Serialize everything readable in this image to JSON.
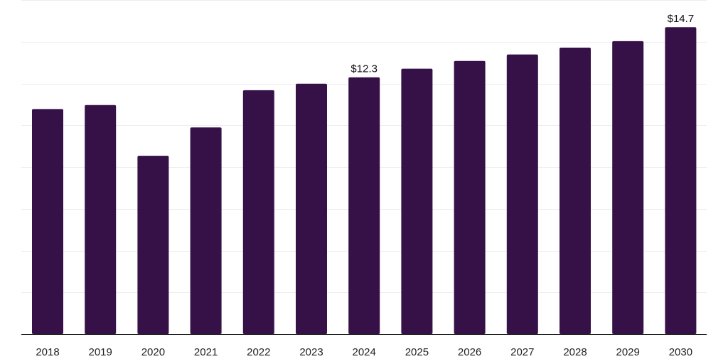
{
  "chart_data": {
    "type": "bar",
    "title": "",
    "xlabel": "",
    "ylabel": "",
    "categories": [
      "2018",
      "2019",
      "2020",
      "2021",
      "2022",
      "2023",
      "2024",
      "2025",
      "2026",
      "2027",
      "2028",
      "2029",
      "2030"
    ],
    "values": [
      10.78,
      10.97,
      8.54,
      9.9,
      11.68,
      11.99,
      12.3,
      12.71,
      13.08,
      13.39,
      13.72,
      14.03,
      14.7
    ],
    "data_labels": [
      {
        "category": "2024",
        "text": "$12.3"
      },
      {
        "category": "2030",
        "text": "$14.7"
      }
    ],
    "ylim": [
      0,
      16
    ],
    "y_gridlines": [
      2,
      4,
      6,
      8,
      10,
      12,
      14,
      16
    ],
    "grid": true,
    "legend": "none",
    "bar_color": "#361148",
    "gridline_color": "#eeeeee",
    "axis_color": "#222222"
  }
}
